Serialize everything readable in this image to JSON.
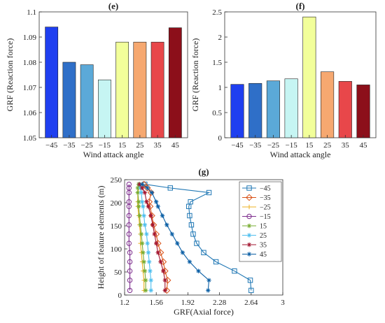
{
  "chart_data": [
    {
      "panel": "(e)",
      "type": "bar",
      "title": "(e)",
      "xlabel": "Wind attack angle",
      "ylabel": "GRF (Reaction force)",
      "categories": [
        "-45",
        "-35",
        "-25",
        "-15",
        "15",
        "25",
        "35",
        "45"
      ],
      "values": [
        1.094,
        1.08,
        1.079,
        1.073,
        1.088,
        1.088,
        1.088,
        1.0937
      ],
      "colors": [
        "#1f3ff0",
        "#2f6fc8",
        "#5ba9d8",
        "#c6f5f3",
        "#f2ff9a",
        "#f6a870",
        "#e8474a",
        "#8c0f1a"
      ],
      "ylim": [
        1.05,
        1.1
      ],
      "yticks": [
        "1.05",
        "1.06",
        "1.07",
        "1.08",
        "1.09",
        "1.1"
      ],
      "grid": false
    },
    {
      "panel": "(f)",
      "type": "bar",
      "title": "(f)",
      "xlabel": "Wind attack angle",
      "ylabel": "GRF (Reaction force)",
      "categories": [
        "-45",
        "-35",
        "-25",
        "-15",
        "15",
        "25",
        "35",
        "45"
      ],
      "values": [
        1.06,
        1.08,
        1.13,
        1.17,
        2.4,
        1.31,
        1.12,
        1.05
      ],
      "colors": [
        "#1f3ff0",
        "#2f6fc8",
        "#5ba9d8",
        "#c6f5f3",
        "#f2ff9a",
        "#f6a870",
        "#e8474a",
        "#8c0f1a"
      ],
      "ylim": [
        0,
        2.5
      ],
      "yticks": [
        "0",
        "0.5",
        "1",
        "1.5",
        "2",
        "2.5"
      ],
      "grid": false
    },
    {
      "panel": "(g)",
      "type": "line",
      "title": "(g)",
      "xlabel": "GRF(Axial force)",
      "ylabel": "Height of feature elements (m)",
      "xlim": [
        1.2,
        3
      ],
      "ylim": [
        0,
        250
      ],
      "xticks": [
        "1.2",
        "1.56",
        "1.92",
        "2.28",
        "2.64",
        "3"
      ],
      "yticks": [
        "0",
        "50",
        "100",
        "150",
        "200",
        "250"
      ],
      "legend_position": "top-right",
      "series": [
        {
          "name": "-45",
          "color": "#1f77b4",
          "marker": "square",
          "x": [
            2.64,
            2.63,
            2.45,
            2.24,
            2.1,
            2.02,
            1.98,
            1.96,
            1.94,
            1.93,
            1.95,
            2.16,
            1.72,
            1.43
          ],
          "y": [
            10,
            32,
            52,
            72,
            92,
            112,
            132,
            152,
            172,
            192,
            202,
            222,
            232,
            240
          ]
        },
        {
          "name": "-35",
          "color": "#d95319",
          "marker": "diamond",
          "x": [
            1.68,
            1.69,
            1.66,
            1.64,
            1.61,
            1.58,
            1.56,
            1.53,
            1.51,
            1.49,
            1.48,
            1.5,
            1.46,
            1.42
          ],
          "y": [
            10,
            32,
            52,
            72,
            92,
            112,
            132,
            152,
            172,
            192,
            202,
            222,
            232,
            240
          ]
        },
        {
          "name": "-25",
          "color": "#edb120",
          "marker": "plus",
          "x": [
            1.42,
            1.42,
            1.41,
            1.4,
            1.39,
            1.38,
            1.38,
            1.37,
            1.36,
            1.35,
            1.35,
            1.35,
            1.36,
            1.37
          ],
          "y": [
            10,
            32,
            52,
            72,
            92,
            112,
            132,
            152,
            172,
            192,
            202,
            222,
            232,
            240
          ]
        },
        {
          "name": "-15",
          "color": "#7e2f8e",
          "marker": "circle",
          "x": [
            1.26,
            1.26,
            1.26,
            1.26,
            1.26,
            1.25,
            1.25,
            1.25,
            1.25,
            1.25,
            1.25,
            1.25,
            1.25,
            1.25
          ],
          "y": [
            10,
            32,
            52,
            72,
            92,
            112,
            132,
            152,
            172,
            192,
            202,
            222,
            232,
            240
          ]
        },
        {
          "name": "15",
          "color": "#77ac30",
          "marker": "asterisk",
          "x": [
            1.44,
            1.44,
            1.43,
            1.42,
            1.41,
            1.4,
            1.39,
            1.38,
            1.37,
            1.36,
            1.36,
            1.35,
            1.35,
            1.36
          ],
          "y": [
            10,
            32,
            52,
            72,
            92,
            112,
            132,
            152,
            172,
            192,
            202,
            222,
            232,
            240
          ]
        },
        {
          "name": "25",
          "color": "#4dbeee",
          "marker": "asterisk",
          "x": [
            1.5,
            1.5,
            1.49,
            1.48,
            1.47,
            1.46,
            1.45,
            1.43,
            1.42,
            1.41,
            1.4,
            1.39,
            1.38,
            1.37
          ],
          "y": [
            10,
            32,
            52,
            72,
            92,
            112,
            132,
            152,
            172,
            192,
            202,
            222,
            232,
            240
          ]
        },
        {
          "name": "35",
          "color": "#a2142f",
          "marker": "asterisk",
          "x": [
            1.66,
            1.66,
            1.64,
            1.61,
            1.58,
            1.56,
            1.54,
            1.52,
            1.5,
            1.47,
            1.45,
            1.43,
            1.4,
            1.37
          ],
          "y": [
            10,
            32,
            52,
            72,
            92,
            112,
            132,
            152,
            172,
            192,
            202,
            222,
            232,
            240
          ]
        },
        {
          "name": "45",
          "color": "#0b5fa5",
          "marker": "asterisk",
          "x": [
            2.15,
            2.16,
            2.04,
            1.94,
            1.86,
            1.8,
            1.74,
            1.68,
            1.63,
            1.58,
            1.56,
            1.51,
            1.46,
            1.4
          ],
          "y": [
            10,
            32,
            52,
            72,
            92,
            112,
            132,
            152,
            172,
            192,
            202,
            222,
            232,
            240
          ]
        }
      ]
    }
  ]
}
